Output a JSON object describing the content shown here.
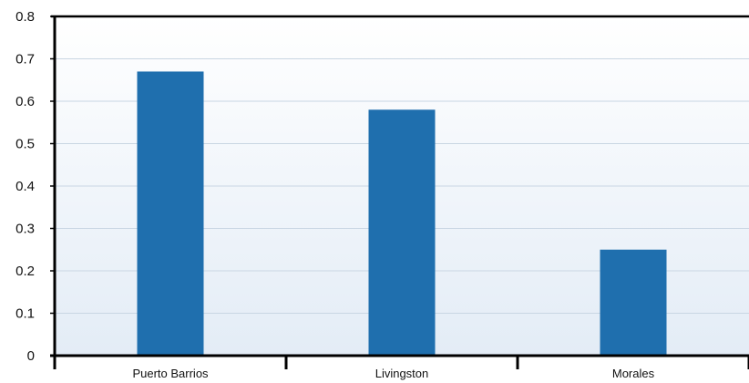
{
  "chart_data": {
    "type": "bar",
    "title": "",
    "xlabel": "",
    "ylabel": "",
    "categories": [
      "Puerto Barrios",
      "Livingston",
      "Morales"
    ],
    "values": [
      0.67,
      0.58,
      0.25
    ],
    "ylim": [
      0,
      0.8
    ],
    "yticks": [
      "0",
      "0.1",
      "0.2",
      "0.3",
      "0.4",
      "0.5",
      "0.6",
      "0.7",
      "0.8"
    ],
    "grid": true,
    "legend": "none",
    "colors": {
      "bar": "#1f6fae",
      "axis": "#000000",
      "grid": "#c9d6e3",
      "plot_bg_top": "#ffffff",
      "plot_bg_bottom": "#e3ecf6"
    }
  }
}
